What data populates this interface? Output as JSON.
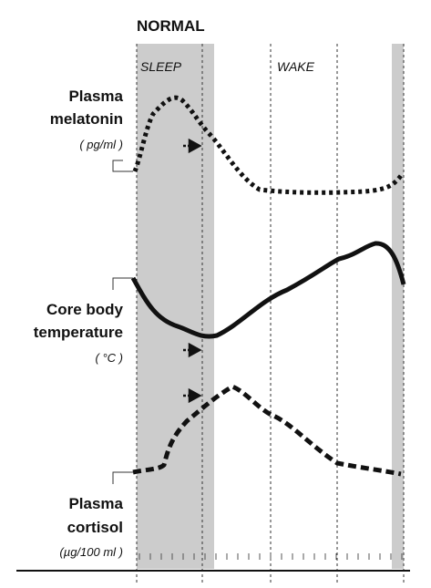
{
  "title": "NORMAL",
  "zones": {
    "sleep": "SLEEP",
    "wake": "WAKE"
  },
  "labels": {
    "melatonin": {
      "line1": "Plasma",
      "line2": "melatonin",
      "unit": "( pg/ml )"
    },
    "temperature": {
      "line1": "Core body",
      "line2": "temperature",
      "unit": "( °C )"
    },
    "cortisol": {
      "line1": "Plasma",
      "line2": "cortisol",
      "unit": "(µg/100 ml )"
    }
  },
  "colors": {
    "sleep_band": "#cccccc",
    "ink": "#111111"
  }
}
